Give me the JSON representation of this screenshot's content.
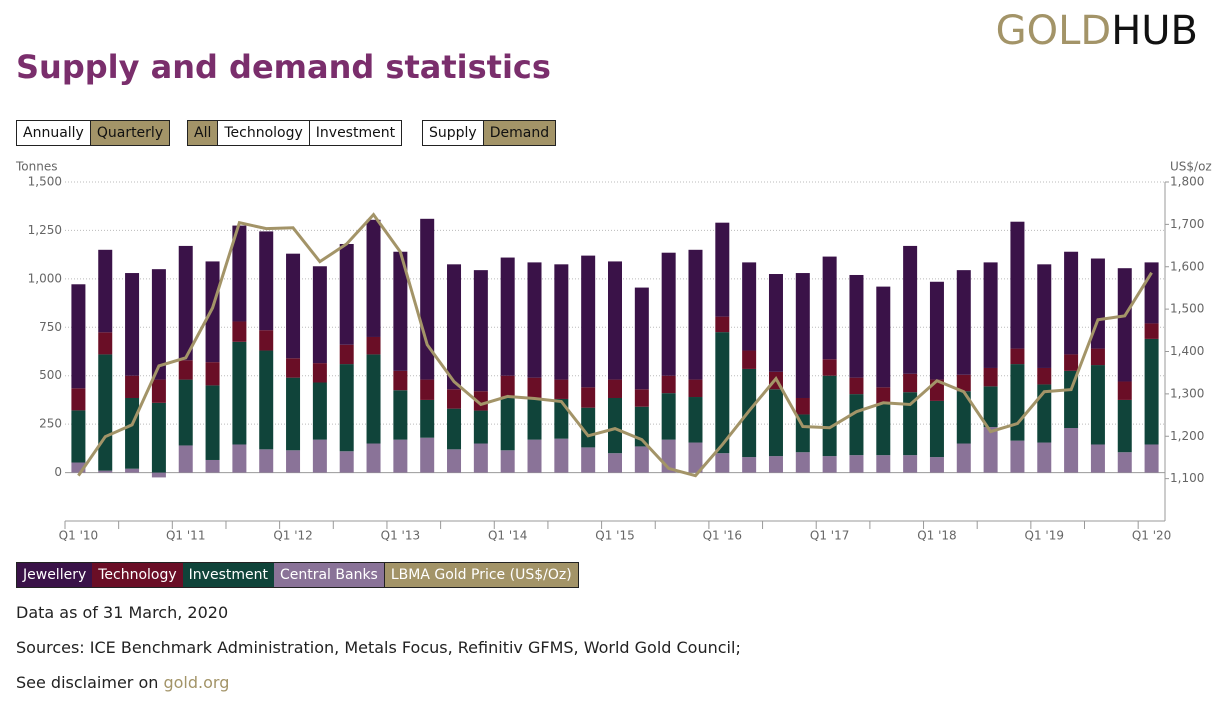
{
  "header": {
    "logo": [
      "GOLD",
      "HUB"
    ],
    "title": "Supply and demand statistics"
  },
  "controls": {
    "period": {
      "options": [
        "Annually",
        "Quarterly"
      ],
      "selected": 1
    },
    "category": {
      "options": [
        "All",
        "Technology",
        "Investment"
      ],
      "selected": 0
    },
    "side": {
      "options": [
        "Supply",
        "Demand"
      ],
      "selected": 1
    }
  },
  "chart_data": {
    "type": "bar",
    "stacked": true,
    "y_label": "Tonnes",
    "y2_label": "US$/oz",
    "categories": [
      "Q1 '10",
      null,
      null,
      null,
      "Q1 '11",
      null,
      null,
      null,
      "Q1 '12",
      null,
      null,
      null,
      "Q1 '13",
      null,
      null,
      null,
      "Q1 '14",
      null,
      null,
      null,
      "Q1 '15",
      null,
      null,
      null,
      "Q1 '16",
      null,
      null,
      null,
      "Q1 '17",
      null,
      null,
      null,
      "Q1 '18",
      null,
      null,
      null,
      "Q1 '19",
      null,
      null,
      null,
      "Q1 '20"
    ],
    "series": [
      {
        "name": "Jewellery",
        "color": "#3a1248",
        "values": [
          537,
          426,
          530,
          570,
          590,
          520,
          495,
          510,
          540,
          500,
          520,
          605,
          615,
          830,
          645,
          625,
          610,
          595,
          595,
          680,
          610,
          525,
          635,
          670,
          485,
          455,
          505,
          645,
          530,
          530,
          520,
          660,
          505,
          540,
          545,
          655,
          535,
          530,
          465,
          585,
          315
        ]
      },
      {
        "name": "Technology",
        "color": "#6a0e26",
        "values": [
          114,
          114,
          115,
          120,
          100,
          120,
          105,
          105,
          100,
          100,
          100,
          90,
          100,
          105,
          100,
          100,
          110,
          105,
          100,
          105,
          95,
          90,
          90,
          90,
          80,
          95,
          90,
          85,
          85,
          85,
          85,
          95,
          110,
          85,
          95,
          80,
          85,
          85,
          85,
          95,
          80
        ]
      },
      {
        "name": "Investment",
        "color": "#10443a",
        "values": [
          269,
          600,
          365,
          360,
          340,
          385,
          530,
          510,
          375,
          295,
          450,
          460,
          255,
          195,
          210,
          170,
          275,
          215,
          205,
          205,
          285,
          205,
          240,
          235,
          625,
          455,
          345,
          195,
          415,
          315,
          265,
          325,
          290,
          270,
          210,
          395,
          300,
          295,
          410,
          270,
          545
        ]
      },
      {
        "name": "Central Banks",
        "color": "#8a7398",
        "values": [
          52,
          10,
          20,
          -25,
          140,
          65,
          145,
          120,
          115,
          170,
          110,
          150,
          170,
          180,
          120,
          150,
          115,
          170,
          175,
          130,
          100,
          135,
          170,
          155,
          100,
          80,
          85,
          105,
          85,
          90,
          90,
          90,
          80,
          150,
          235,
          165,
          155,
          230,
          145,
          105,
          145
        ]
      },
      {
        "name": "LBMA Gold Price (US$/Oz)",
        "color": "#a39468",
        "type": "line",
        "axis": "y2",
        "values": [
          1107,
          1199,
          1227,
          1366,
          1385,
          1503,
          1704,
          1690,
          1692,
          1612,
          1654,
          1723,
          1635,
          1416,
          1329,
          1275,
          1294,
          1289,
          1282,
          1201,
          1218,
          1192,
          1124,
          1107,
          1180,
          1260,
          1336,
          1223,
          1220,
          1258,
          1279,
          1275,
          1331,
          1305,
          1211,
          1230,
          1305,
          1310,
          1475,
          1484,
          1586
        ]
      }
    ],
    "ylim": [
      -250,
      1500
    ],
    "yticks": [
      0,
      250,
      500,
      750,
      {
        "value": 1000,
        "label": "1,000"
      },
      {
        "value": 1250,
        "label": "1,250"
      },
      {
        "value": 1500,
        "label": "1,500"
      }
    ],
    "y2lim": [
      1000,
      1800
    ],
    "y2ticks": [
      {
        "value": 1100,
        "label": "1,100"
      },
      {
        "value": 1200,
        "label": "1,200"
      },
      {
        "value": 1300,
        "label": "1,300"
      },
      {
        "value": 1400,
        "label": "1,400"
      },
      {
        "value": 1500,
        "label": "1,500"
      },
      {
        "value": 1600,
        "label": "1,600"
      },
      {
        "value": 1700,
        "label": "1,700"
      },
      {
        "value": 1800,
        "label": "1,800"
      }
    ],
    "grid": true
  },
  "footer": {
    "date": "Data as of 31 March, 2020",
    "sources": "Sources: ICE Benchmark Administration, Metals Focus, Refinitiv GFMS, World Gold Council;",
    "disclaimer": "See disclaimer on",
    "link": "gold.org"
  }
}
